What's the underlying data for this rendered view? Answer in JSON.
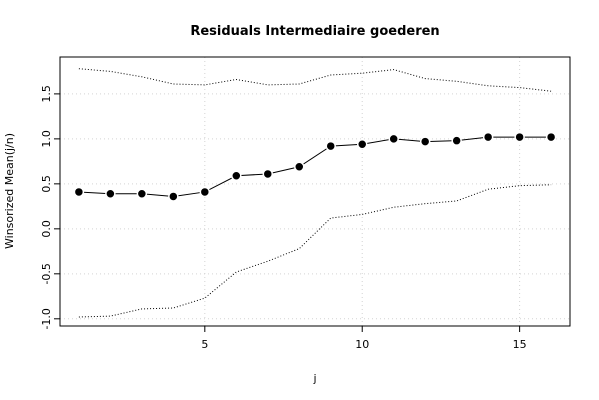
{
  "chart_data": {
    "type": "line",
    "title": "Residuals Intermediaire goederen",
    "x_label": "j",
    "y_label": "Winsorized Mean(j/n)",
    "x": [
      1,
      2,
      3,
      4,
      5,
      6,
      7,
      8,
      9,
      10,
      11,
      12,
      13,
      14,
      15,
      16
    ],
    "series": [
      {
        "color": "#000000",
        "line_style": "solid",
        "markers": true,
        "values": [
          0.41,
          0.39,
          0.39,
          0.36,
          0.41,
          0.59,
          0.61,
          0.69,
          0.92,
          0.94,
          1.0,
          0.97,
          0.98,
          1.02,
          1.02,
          1.02
        ]
      },
      {
        "color": "#000000",
        "line_style": "dotted",
        "markers": false,
        "values": [
          1.78,
          1.75,
          1.69,
          1.61,
          1.6,
          1.66,
          1.6,
          1.61,
          1.71,
          1.73,
          1.77,
          1.67,
          1.64,
          1.59,
          1.57,
          1.53
        ]
      },
      {
        "color": "#000000",
        "line_style": "dotted",
        "markers": false,
        "values": [
          -0.98,
          -0.97,
          -0.89,
          -0.88,
          -0.77,
          -0.48,
          -0.36,
          -0.22,
          0.12,
          0.16,
          0.24,
          0.28,
          0.31,
          0.44,
          0.48,
          0.49
        ]
      }
    ],
    "xlim": [
      0.4,
      16.6
    ],
    "ylim": [
      -1.08,
      1.91
    ],
    "xticks": [
      5,
      10,
      15
    ],
    "yticks": [
      {
        "value": -1,
        "label": "-1.0"
      },
      {
        "value": -0.5,
        "label": "-0.5"
      },
      {
        "value": 0,
        "label": "0.0"
      },
      {
        "value": 0.5,
        "label": "0.5"
      },
      {
        "value": 1,
        "label": "1.0"
      },
      {
        "value": 1.5,
        "label": "1.5"
      }
    ],
    "grid": true
  }
}
